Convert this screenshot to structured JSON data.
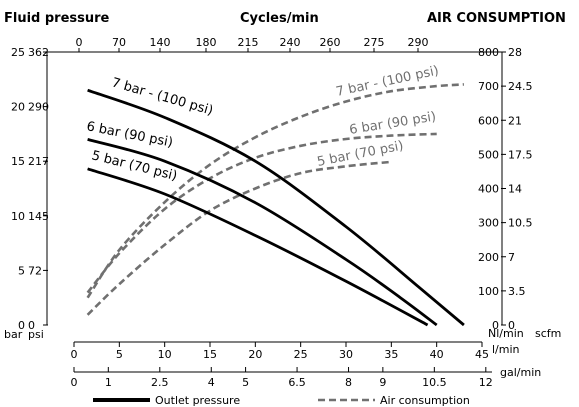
{
  "chart_data": {
    "type": "line",
    "title_left": "Fluid pressure",
    "title_top": "Cycles/min",
    "title_right": "AIR CONSUMPTION",
    "left_axis": {
      "bar_ticks": [
        "0",
        "5",
        "10",
        "15",
        "20",
        "25"
      ],
      "psi_ticks": [
        "0",
        "72",
        "145",
        "217",
        "290",
        "362"
      ],
      "bar_unit": "bar",
      "psi_unit": "psi",
      "range": [
        0,
        25
      ]
    },
    "right_axis": {
      "nlmin_ticks": [
        "0",
        "100",
        "200",
        "300",
        "400",
        "500",
        "600",
        "700",
        "800"
      ],
      "scfm_ticks": [
        "0",
        "3.5",
        "7",
        "10.5",
        "14",
        "17.5",
        "21",
        "24.5",
        "28"
      ],
      "nlmin_unit": "Nl/min",
      "scfm_unit": "scfm",
      "range": [
        0,
        800
      ]
    },
    "top_axis": {
      "ticks": [
        "0",
        "70",
        "140",
        "180",
        "215",
        "240",
        "260",
        "275",
        "290"
      ]
    },
    "bottom_axis_lmin": {
      "ticks": [
        "0",
        "5",
        "10",
        "15",
        "20",
        "25",
        "30",
        "35",
        "40",
        "45"
      ],
      "unit": "l/min",
      "range": [
        0,
        45
      ]
    },
    "bottom_axis_galmin": {
      "ticks": [
        "0",
        "1",
        "2.5",
        "4",
        "5",
        "6.5",
        "8",
        "9",
        "10.5",
        "12"
      ],
      "unit": "gal/min"
    },
    "outlet_series": [
      {
        "label": "7 bar - (100 psi)",
        "x": [
          1.5,
          10,
          20,
          30,
          38,
          43
        ],
        "y": [
          21.5,
          19,
          15,
          9,
          3.5,
          0
        ]
      },
      {
        "label": "6 bar (90 psi)",
        "x": [
          1.5,
          10,
          20,
          30,
          36,
          40
        ],
        "y": [
          17,
          15,
          11.2,
          6,
          2.5,
          0
        ]
      },
      {
        "label": "5 bar (70 psi)",
        "x": [
          1.5,
          10,
          20,
          30,
          39
        ],
        "y": [
          14.3,
          12,
          8.2,
          4,
          0
        ]
      }
    ],
    "air_series": [
      {
        "label": "7 bar - (100 psi)",
        "x": [
          1.5,
          5,
          10,
          15,
          20,
          25,
          30,
          35,
          40,
          43
        ],
        "y": [
          80,
          220,
          360,
          470,
          550,
          610,
          655,
          685,
          700,
          705
        ]
      },
      {
        "label": "6 bar (90 psi)",
        "x": [
          1.5,
          5,
          10,
          15,
          20,
          25,
          30,
          35,
          40
        ],
        "y": [
          95,
          210,
          340,
          430,
          490,
          525,
          545,
          555,
          560
        ]
      },
      {
        "label": "5 bar (70 psi)",
        "x": [
          1.5,
          5,
          10,
          15,
          20,
          25,
          30,
          35
        ],
        "y": [
          30,
          120,
          235,
          335,
          400,
          445,
          465,
          478
        ]
      }
    ],
    "legend": {
      "outlet": "Outlet pressure",
      "air": "Air consumption"
    },
    "styles": {
      "outlet_color": "#000000",
      "air_color": "#707070"
    }
  }
}
